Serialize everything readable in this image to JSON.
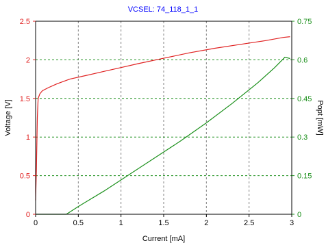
{
  "chart_data": {
    "type": "line",
    "title": "VCSEL: 74_118_1_1",
    "xlabel": "Current [mA]",
    "ylabel_left": "Voltage [V]",
    "ylabel_right": "Popt [mW]",
    "xlim": [
      0,
      3
    ],
    "ylim_left": [
      0,
      2.5
    ],
    "ylim_right": [
      0,
      0.75
    ],
    "x_ticks": [
      "0",
      "0.5",
      "1",
      "1.5",
      "2",
      "2.5",
      "3"
    ],
    "y_left_ticks": [
      "0",
      "0.5",
      "1",
      "1.5",
      "2",
      "2.5"
    ],
    "y_right_ticks": [
      "0",
      "0.15",
      "0.3",
      "0.45",
      "0.6",
      "0.75"
    ],
    "grid": true,
    "series": [
      {
        "axis": "left",
        "color": "#e02020",
        "points": [
          [
            0.0,
            0.18
          ],
          [
            0.01,
            0.6
          ],
          [
            0.02,
            1.25
          ],
          [
            0.03,
            1.5
          ],
          [
            0.05,
            1.56
          ],
          [
            0.08,
            1.6
          ],
          [
            0.15,
            1.64
          ],
          [
            0.25,
            1.69
          ],
          [
            0.4,
            1.75
          ],
          [
            0.6,
            1.8
          ],
          [
            0.8,
            1.85
          ],
          [
            1.0,
            1.9
          ],
          [
            1.2,
            1.95
          ],
          [
            1.5,
            2.02
          ],
          [
            1.8,
            2.09
          ],
          [
            2.1,
            2.15
          ],
          [
            2.4,
            2.2
          ],
          [
            2.7,
            2.25
          ],
          [
            2.9,
            2.29
          ],
          [
            2.98,
            2.3
          ]
        ]
      },
      {
        "axis": "right",
        "color": "#1a8f1a",
        "points": [
          [
            0.0,
            0.0
          ],
          [
            0.3,
            0.0
          ],
          [
            0.36,
            0.0
          ],
          [
            0.5,
            0.03
          ],
          [
            0.8,
            0.09
          ],
          [
            1.1,
            0.155
          ],
          [
            1.4,
            0.22
          ],
          [
            1.7,
            0.285
          ],
          [
            2.0,
            0.355
          ],
          [
            2.3,
            0.43
          ],
          [
            2.6,
            0.51
          ],
          [
            2.8,
            0.57
          ],
          [
            2.92,
            0.61
          ],
          [
            2.98,
            0.605
          ]
        ]
      }
    ]
  }
}
